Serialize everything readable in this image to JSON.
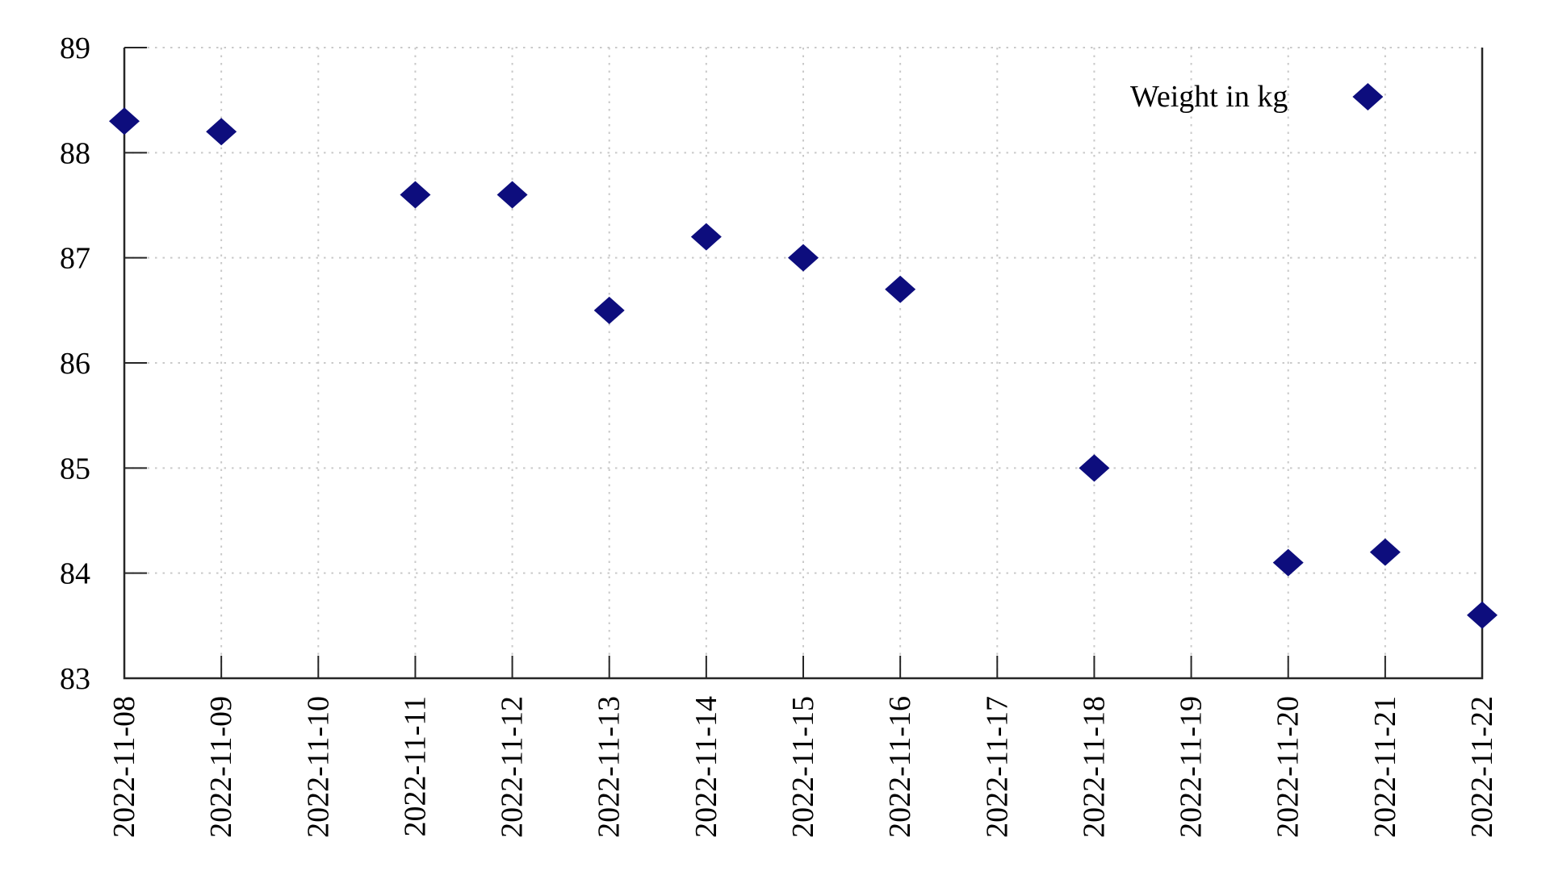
{
  "legend": {
    "label": "Weight in kg"
  },
  "chart_data": {
    "type": "scatter",
    "title": "",
    "xlabel": "",
    "ylabel": "",
    "legend_entries": [
      {
        "label": "Weight in kg",
        "marker": "diamond",
        "color": "#0d0d7d"
      }
    ],
    "legend_position": "top-right-inside",
    "x_tick_labels": [
      "2022-11-08",
      "2022-11-09",
      "2022-11-10",
      "2022-11-11",
      "2022-11-12",
      "2022-11-13",
      "2022-11-14",
      "2022-11-15",
      "2022-11-16",
      "2022-11-17",
      "2022-11-18",
      "2022-11-19",
      "2022-11-20",
      "2022-11-21",
      "2022-11-22"
    ],
    "y_tick_labels": [
      "83",
      "84",
      "85",
      "86",
      "87",
      "88",
      "89"
    ],
    "ylim": [
      83,
      89
    ],
    "grid": "dotted",
    "series": [
      {
        "name": "Weight in kg",
        "marker": "diamond",
        "points": [
          {
            "x": "2022-11-08",
            "y": 88.3
          },
          {
            "x": "2022-11-09",
            "y": 88.2
          },
          {
            "x": "2022-11-11",
            "y": 87.6
          },
          {
            "x": "2022-11-12",
            "y": 87.6
          },
          {
            "x": "2022-11-13",
            "y": 86.5
          },
          {
            "x": "2022-11-14",
            "y": 87.2
          },
          {
            "x": "2022-11-15",
            "y": 87.0
          },
          {
            "x": "2022-11-16",
            "y": 86.7
          },
          {
            "x": "2022-11-18",
            "y": 85.0
          },
          {
            "x": "2022-11-20",
            "y": 84.1
          },
          {
            "x": "2022-11-21",
            "y": 84.2
          },
          {
            "x": "2022-11-22",
            "y": 83.6
          }
        ]
      }
    ],
    "colors": {
      "marker": "#0d0d7d",
      "grid": "#c9c9c9",
      "axis": "#262626",
      "text": "#000000"
    }
  }
}
